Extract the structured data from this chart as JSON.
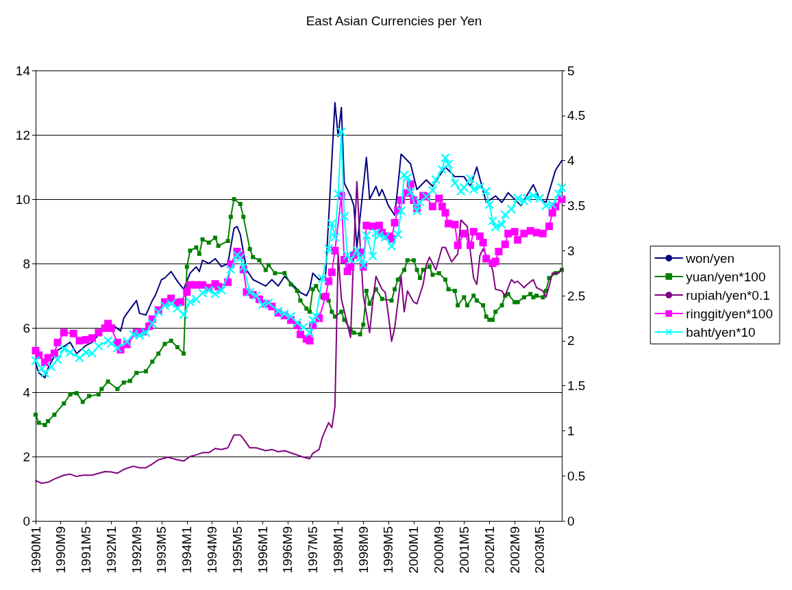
{
  "chart_data": {
    "type": "line",
    "title": "East Asian Currencies per Yen",
    "xlim": [
      "1990-01",
      "2003-12"
    ],
    "xticks": [
      {
        "value": "1990-01",
        "label": "1990M1"
      },
      {
        "value": "1990-09",
        "label": "1990M9"
      },
      {
        "value": "1991-05",
        "label": "1991M5"
      },
      {
        "value": "1992-01",
        "label": "1992M1"
      },
      {
        "value": "1992-09",
        "label": "1992M9"
      },
      {
        "value": "1993-05",
        "label": "1993M5"
      },
      {
        "value": "1994-01",
        "label": "1994M1"
      },
      {
        "value": "1994-09",
        "label": "1994M9"
      },
      {
        "value": "1995-05",
        "label": "1995M5"
      },
      {
        "value": "1996-01",
        "label": "1996M1"
      },
      {
        "value": "1996-09",
        "label": "1996M9"
      },
      {
        "value": "1997-05",
        "label": "1997M5"
      },
      {
        "value": "1998-01",
        "label": "1998M1"
      },
      {
        "value": "1998-09",
        "label": "1998M9"
      },
      {
        "value": "1999-05",
        "label": "1999M5"
      },
      {
        "value": "2000-01",
        "label": "2000M1"
      },
      {
        "value": "2000-09",
        "label": "2000M9"
      },
      {
        "value": "2001-05",
        "label": "2001M5"
      },
      {
        "value": "2002-01",
        "label": "2002M1"
      },
      {
        "value": "2002-09",
        "label": "2002M9"
      },
      {
        "value": "2003-05",
        "label": "2003M5"
      }
    ],
    "ylim": [
      0,
      14
    ],
    "yticks": [
      0,
      2,
      4,
      6,
      8,
      10,
      12,
      14
    ],
    "y2lim": [
      0,
      5
    ],
    "y2ticks": [
      0,
      0.5,
      1,
      1.5,
      2,
      2.5,
      3,
      3.5,
      4,
      4.5,
      5
    ],
    "grid": "y",
    "legend": "right",
    "line_style": "solid",
    "series": [
      {
        "name": "won/yen",
        "color": "#000080",
        "marker": "none",
        "x": [
          "1990-01",
          "1990-02",
          "1990-04",
          "1990-05",
          "1990-08",
          "1990-12",
          "1991-02",
          "1991-05",
          "1991-07",
          "1991-10",
          "1991-12",
          "1992-02",
          "1992-04",
          "1992-05",
          "1992-06",
          "1992-09",
          "1992-10",
          "1992-12",
          "1993-02",
          "1993-03",
          "1993-05",
          "1993-06",
          "1993-08",
          "1993-10",
          "1993-12",
          "1994-02",
          "1994-04",
          "1994-05",
          "1994-06",
          "1994-08",
          "1994-10",
          "1994-12",
          "1995-02",
          "1995-04",
          "1995-05",
          "1995-06",
          "1995-08",
          "1995-10",
          "1995-12",
          "1996-02",
          "1996-04",
          "1996-06",
          "1996-08",
          "1996-11",
          "1997-01",
          "1997-03",
          "1997-04",
          "1997-05",
          "1997-07",
          "1997-09",
          "1997-12",
          "1998-01",
          "1998-02",
          "1998-03",
          "1998-05",
          "1998-06",
          "1998-07",
          "1998-10",
          "1998-11",
          "1999-01",
          "1999-02",
          "1999-03",
          "1999-05",
          "1999-07",
          "1999-08",
          "1999-09",
          "1999-12",
          "2000-02",
          "2000-05",
          "2000-07",
          "2000-11",
          "2001-02",
          "2001-05",
          "2001-07",
          "2001-09",
          "2001-12",
          "2002-03",
          "2002-05",
          "2002-07",
          "2002-11",
          "2003-03",
          "2003-05",
          "2003-07",
          "2003-10",
          "2003-12"
        ],
        "values": [
          4.9,
          4.6,
          4.45,
          4.75,
          5.3,
          5.55,
          5.2,
          5.45,
          5.55,
          5.9,
          6.15,
          6.05,
          5.9,
          6.3,
          6.45,
          6.85,
          6.45,
          6.4,
          6.85,
          7.0,
          7.5,
          7.55,
          7.75,
          7.45,
          7.2,
          7.7,
          7.9,
          7.75,
          8.1,
          8.0,
          8.15,
          7.9,
          8.0,
          9.1,
          9.15,
          8.9,
          7.8,
          7.5,
          7.4,
          7.3,
          7.5,
          7.3,
          7.6,
          7.3,
          7.1,
          7.0,
          7.2,
          7.7,
          7.5,
          7.6,
          13.0,
          11.95,
          12.85,
          10.5,
          10.1,
          9.8,
          8.5,
          11.3,
          10.0,
          10.4,
          10.1,
          10.3,
          9.8,
          9.5,
          10.4,
          11.4,
          11.1,
          10.3,
          10.6,
          10.4,
          11.0,
          10.7,
          10.7,
          10.4,
          11.0,
          9.9,
          10.1,
          9.9,
          10.2,
          9.8,
          10.45,
          10.0,
          9.9,
          10.9,
          11.2
        ]
      },
      {
        "name": "yuan/yen*100",
        "color": "#008000",
        "marker": "square",
        "x": [
          "1990-01",
          "1990-02",
          "1990-04",
          "1990-05",
          "1990-07",
          "1990-10",
          "1990-12",
          "1991-02",
          "1991-04",
          "1991-06",
          "1991-09",
          "1991-10",
          "1991-12",
          "1992-03",
          "1992-05",
          "1992-07",
          "1992-09",
          "1992-12",
          "1993-02",
          "1993-04",
          "1993-06",
          "1993-08",
          "1993-10",
          "1993-12",
          "1994-01",
          "1994-02",
          "1994-04",
          "1994-05",
          "1994-06",
          "1994-08",
          "1994-10",
          "1994-11",
          "1995-02",
          "1995-03",
          "1995-04",
          "1995-06",
          "1995-07",
          "1995-09",
          "1995-10",
          "1995-12",
          "1996-02",
          "1996-03",
          "1996-05",
          "1996-08",
          "1996-10",
          "1996-12",
          "1997-01",
          "1997-03",
          "1997-04",
          "1997-05",
          "1997-06",
          "1997-08",
          "1997-10",
          "1997-11",
          "1997-12",
          "1998-02",
          "1998-03",
          "1998-05",
          "1998-06",
          "1998-08",
          "1998-09",
          "1998-10",
          "1998-11",
          "1999-01",
          "1999-03",
          "1999-06",
          "1999-07",
          "1999-08",
          "1999-10",
          "1999-11",
          "2000-01",
          "2000-02",
          "2000-03",
          "2000-04",
          "2000-06",
          "2000-07",
          "2000-09",
          "2000-11",
          "2000-12",
          "2001-02",
          "2001-03",
          "2001-05",
          "2001-06",
          "2001-08",
          "2001-09",
          "2001-11",
          "2001-12",
          "2002-01",
          "2002-02",
          "2002-03",
          "2002-05",
          "2002-06",
          "2002-07",
          "2002-09",
          "2002-10",
          "2002-12",
          "2003-02",
          "2003-03",
          "2003-04",
          "2003-06",
          "2003-07",
          "2003-08",
          "2003-10",
          "2003-12"
        ],
        "values": [
          3.3,
          3.05,
          2.98,
          3.1,
          3.3,
          3.65,
          3.93,
          3.97,
          3.7,
          3.88,
          3.93,
          4.1,
          4.33,
          4.1,
          4.3,
          4.35,
          4.6,
          4.65,
          4.95,
          5.2,
          5.5,
          5.6,
          5.4,
          5.2,
          7.9,
          8.4,
          8.5,
          8.3,
          8.75,
          8.65,
          8.8,
          8.55,
          8.7,
          9.45,
          10.0,
          9.85,
          9.45,
          8.45,
          8.2,
          8.1,
          7.8,
          7.95,
          7.7,
          7.7,
          7.35,
          7.15,
          6.85,
          6.6,
          6.5,
          7.2,
          7.3,
          6.95,
          6.85,
          6.5,
          6.35,
          6.5,
          6.25,
          5.95,
          5.85,
          5.8,
          6.1,
          7.15,
          6.75,
          7.2,
          6.9,
          6.85,
          7.2,
          7.5,
          7.8,
          8.1,
          8.1,
          7.8,
          7.55,
          7.8,
          7.9,
          7.65,
          7.7,
          7.5,
          7.2,
          7.15,
          6.7,
          6.95,
          6.7,
          7.0,
          6.85,
          6.7,
          6.35,
          6.25,
          6.25,
          6.5,
          6.7,
          7.0,
          7.05,
          6.8,
          6.8,
          6.95,
          7.05,
          6.95,
          7.0,
          6.95,
          7.15,
          7.55,
          7.7,
          7.8
        ]
      },
      {
        "name": "rupiah/yen*0.1",
        "color": "#800080",
        "marker": "none",
        "x": [
          "1990-01",
          "1990-03",
          "1990-05",
          "1990-07",
          "1990-10",
          "1990-12",
          "1991-02",
          "1991-04",
          "1991-07",
          "1991-09",
          "1991-11",
          "1992-01",
          "1992-03",
          "1992-05",
          "1992-08",
          "1992-10",
          "1992-12",
          "1993-02",
          "1993-04",
          "1993-07",
          "1993-10",
          "1993-12",
          "1994-02",
          "1994-04",
          "1994-06",
          "1994-08",
          "1994-10",
          "1994-12",
          "1995-02",
          "1995-04",
          "1995-06",
          "1995-07",
          "1995-09",
          "1995-11",
          "1996-02",
          "1996-04",
          "1996-06",
          "1996-08",
          "1996-11",
          "1997-02",
          "1997-04",
          "1997-05",
          "1997-07",
          "1997-08",
          "1997-10",
          "1997-11",
          "1997-12",
          "1998-01",
          "1998-02",
          "1998-04",
          "1998-05",
          "1998-06",
          "1998-07",
          "1998-08",
          "1998-09",
          "1998-10",
          "1998-11",
          "1998-12",
          "1999-01",
          "1999-03",
          "1999-04",
          "1999-05",
          "1999-06",
          "1999-07",
          "1999-09",
          "1999-10",
          "1999-11",
          "2000-01",
          "2000-02",
          "2000-04",
          "2000-05",
          "2000-06",
          "2000-08",
          "2000-10",
          "2000-11",
          "2001-01",
          "2001-03",
          "2001-04",
          "2001-06",
          "2001-08",
          "2001-09",
          "2001-10",
          "2001-11",
          "2002-01",
          "2002-02",
          "2002-03",
          "2002-05",
          "2002-06",
          "2002-08",
          "2002-09",
          "2002-10",
          "2002-12",
          "2003-01",
          "2003-03",
          "2003-04",
          "2003-06",
          "2003-07",
          "2003-08",
          "2003-09",
          "2003-11",
          "2003-12"
        ],
        "values": [
          1.25,
          1.17,
          1.2,
          1.3,
          1.42,
          1.45,
          1.38,
          1.42,
          1.42,
          1.48,
          1.53,
          1.52,
          1.48,
          1.6,
          1.7,
          1.65,
          1.65,
          1.77,
          1.9,
          1.98,
          1.9,
          1.86,
          2.0,
          2.05,
          2.12,
          2.12,
          2.25,
          2.22,
          2.27,
          2.67,
          2.67,
          2.55,
          2.27,
          2.27,
          2.18,
          2.22,
          2.15,
          2.18,
          2.08,
          1.98,
          1.93,
          2.1,
          2.22,
          2.6,
          3.05,
          2.9,
          3.55,
          8.3,
          6.9,
          6.1,
          5.7,
          8.4,
          10.55,
          8.6,
          7.0,
          6.45,
          5.85,
          6.8,
          7.6,
          7.2,
          7.1,
          6.4,
          5.58,
          6.0,
          7.6,
          6.5,
          7.15,
          6.8,
          6.75,
          7.35,
          7.95,
          8.2,
          7.8,
          8.5,
          8.5,
          8.05,
          8.3,
          9.35,
          9.15,
          7.55,
          7.35,
          8.25,
          8.45,
          8.05,
          7.8,
          7.2,
          7.15,
          7.0,
          7.5,
          7.4,
          7.45,
          7.25,
          7.35,
          7.5,
          7.25,
          7.15,
          6.95,
          7.3,
          7.7,
          7.7,
          7.85
        ]
      },
      {
        "name": "ringgit/yen*100",
        "color": "#ff00ff",
        "marker": "square",
        "axis": "y2",
        "x": [
          "1990-01",
          "1990-02",
          "1990-04",
          "1990-05",
          "1990-07",
          "1990-08",
          "1990-10",
          "1991-01",
          "1991-03",
          "1991-05",
          "1991-07",
          "1991-09",
          "1991-11",
          "1991-12",
          "1992-01",
          "1992-03",
          "1992-04",
          "1992-06",
          "1992-09",
          "1992-11",
          "1993-01",
          "1993-02",
          "1993-04",
          "1993-06",
          "1993-08",
          "1993-10",
          "1993-11",
          "1994-01",
          "1994-02",
          "1994-04",
          "1994-06",
          "1994-08",
          "1994-10",
          "1994-11",
          "1995-02",
          "1995-03",
          "1995-05",
          "1995-06",
          "1995-07",
          "1995-08",
          "1995-10",
          "1995-12",
          "1996-02",
          "1996-04",
          "1996-06",
          "1996-08",
          "1996-10",
          "1996-12",
          "1997-01",
          "1997-03",
          "1997-04",
          "1997-05",
          "1997-07",
          "1997-09",
          "1997-10",
          "1997-11",
          "1997-12",
          "1998-02",
          "1998-03",
          "1998-04",
          "1998-05",
          "1998-06",
          "1998-08",
          "1998-09",
          "1998-10",
          "1998-12",
          "1999-02",
          "1999-03",
          "1999-05",
          "1999-06",
          "1999-07",
          "1999-08",
          "1999-09",
          "1999-11",
          "1999-12",
          "2000-01",
          "2000-02",
          "2000-04",
          "2000-05",
          "2000-07",
          "2000-09",
          "2000-10",
          "2000-11",
          "2000-12",
          "2001-02",
          "2001-03",
          "2001-05",
          "2001-07",
          "2001-08",
          "2001-10",
          "2001-11",
          "2001-12",
          "2002-02",
          "2002-03",
          "2002-04",
          "2002-06",
          "2002-07",
          "2002-09",
          "2002-10",
          "2002-12",
          "2003-02",
          "2003-04",
          "2003-06",
          "2003-08",
          "2003-09",
          "2003-10",
          "2003-12"
        ],
        "values": [
          1.89,
          1.84,
          1.76,
          1.81,
          1.86,
          1.98,
          2.09,
          2.08,
          2.0,
          2.01,
          2.03,
          2.09,
          2.14,
          2.19,
          2.14,
          1.98,
          1.9,
          1.96,
          2.09,
          2.1,
          2.16,
          2.24,
          2.34,
          2.43,
          2.47,
          2.42,
          2.43,
          2.54,
          2.62,
          2.62,
          2.62,
          2.59,
          2.63,
          2.6,
          2.65,
          2.85,
          2.99,
          2.95,
          2.79,
          2.54,
          2.51,
          2.46,
          2.41,
          2.38,
          2.31,
          2.28,
          2.23,
          2.17,
          2.07,
          2.02,
          2.0,
          2.17,
          2.25,
          2.49,
          2.66,
          2.76,
          3.0,
          3.61,
          2.9,
          2.77,
          2.82,
          2.95,
          2.98,
          2.82,
          3.28,
          3.27,
          3.28,
          3.2,
          3.16,
          3.13,
          3.31,
          3.45,
          3.56,
          3.64,
          3.74,
          3.56,
          3.47,
          3.61,
          3.6,
          3.49,
          3.58,
          3.49,
          3.42,
          3.3,
          3.29,
          3.06,
          3.19,
          3.06,
          3.21,
          3.16,
          3.09,
          2.91,
          2.86,
          2.88,
          2.99,
          3.07,
          3.19,
          3.21,
          3.12,
          3.19,
          3.22,
          3.2,
          3.19,
          3.27,
          3.42,
          3.49,
          3.57
        ]
      },
      {
        "name": "baht/yen*10",
        "color": "#00ffff",
        "marker": "cross",
        "axis": "y2",
        "x": [
          "1990-01",
          "1990-03",
          "1990-04",
          "1990-06",
          "1990-08",
          "1990-10",
          "1990-12",
          "1991-03",
          "1991-05",
          "1991-07",
          "1991-09",
          "1991-12",
          "1992-01",
          "1992-03",
          "1992-06",
          "1992-08",
          "1992-10",
          "1992-12",
          "1993-02",
          "1993-04",
          "1993-06",
          "1993-08",
          "1993-10",
          "1993-12",
          "1994-02",
          "1994-04",
          "1994-06",
          "1994-08",
          "1994-10",
          "1994-12",
          "1995-03",
          "1995-05",
          "1995-06",
          "1995-07",
          "1995-09",
          "1995-11",
          "1996-01",
          "1996-03",
          "1996-06",
          "1996-08",
          "1996-10",
          "1996-12",
          "1997-02",
          "1997-04",
          "1997-05",
          "1997-06",
          "1997-08",
          "1997-10",
          "1997-11",
          "1997-12",
          "1998-01",
          "1998-02",
          "1998-03",
          "1998-04",
          "1998-05",
          "1998-07",
          "1998-08",
          "1998-09",
          "1998-10",
          "1998-12",
          "1999-01",
          "1999-02",
          "1999-04",
          "1999-06",
          "1999-08",
          "1999-09",
          "1999-10",
          "1999-11",
          "1999-12",
          "2000-02",
          "2000-03",
          "2000-05",
          "2000-07",
          "2000-08",
          "2000-10",
          "2000-11",
          "2000-12",
          "2001-02",
          "2001-04",
          "2001-05",
          "2001-07",
          "2001-08",
          "2001-10",
          "2001-12",
          "2002-01",
          "2002-02",
          "2002-03",
          "2002-05",
          "2002-06",
          "2002-08",
          "2002-10",
          "2002-12",
          "2003-01",
          "2003-03",
          "2003-05",
          "2003-07",
          "2003-09",
          "2003-11",
          "2003-12"
        ],
        "values": [
          1.78,
          1.69,
          1.64,
          1.71,
          1.79,
          1.91,
          1.87,
          1.81,
          1.87,
          1.86,
          1.94,
          2.0,
          1.97,
          1.92,
          1.99,
          2.07,
          2.06,
          2.09,
          2.19,
          2.32,
          2.39,
          2.41,
          2.36,
          2.29,
          2.43,
          2.46,
          2.53,
          2.56,
          2.52,
          2.56,
          2.79,
          2.95,
          2.92,
          2.82,
          2.54,
          2.5,
          2.4,
          2.42,
          2.33,
          2.3,
          2.27,
          2.2,
          2.15,
          2.09,
          2.23,
          2.27,
          2.69,
          3.02,
          3.3,
          3.15,
          3.63,
          4.32,
          3.38,
          2.95,
          2.9,
          3.0,
          2.92,
          2.84,
          3.17,
          2.94,
          3.2,
          3.17,
          3.15,
          3.05,
          3.18,
          3.44,
          3.84,
          3.81,
          3.65,
          3.44,
          3.54,
          3.6,
          3.67,
          3.79,
          3.9,
          4.03,
          3.96,
          3.75,
          3.66,
          3.7,
          3.8,
          3.68,
          3.71,
          3.66,
          3.51,
          3.33,
          3.26,
          3.29,
          3.4,
          3.46,
          3.58,
          3.55,
          3.58,
          3.61,
          3.58,
          3.5,
          3.51,
          3.63,
          3.7
        ]
      }
    ]
  }
}
